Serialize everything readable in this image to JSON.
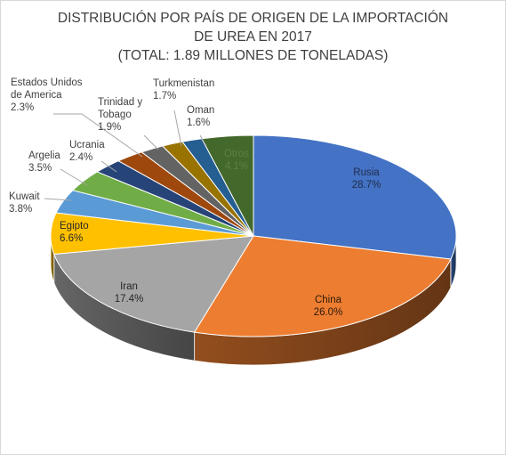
{
  "chart_data": {
    "type": "pie",
    "style": "3d-pie",
    "title_lines": [
      "DISTRIBUCIÓN POR PAÍS DE ORIGEN  DE LA IMPORTACIÓN",
      "DE UREA EN 2017",
      "(TOTAL: 1.89 MILLONES DE TONELADAS)"
    ],
    "legend": "none",
    "data_label_format": "category + percent",
    "slices": [
      {
        "label_lines": [
          "Rusia"
        ],
        "value_text": "28.7%",
        "value": 28.7,
        "color": "#4472c4"
      },
      {
        "label_lines": [
          "China"
        ],
        "value_text": "26.0%",
        "value": 26.0,
        "color": "#ed7d31"
      },
      {
        "label_lines": [
          "Iran"
        ],
        "value_text": "17.4%",
        "value": 17.4,
        "color": "#a5a5a5"
      },
      {
        "label_lines": [
          "Egipto"
        ],
        "value_text": "6.6%",
        "value": 6.6,
        "color": "#ffc000"
      },
      {
        "label_lines": [
          "Kuwait"
        ],
        "value_text": "3.8%",
        "value": 3.8,
        "color": "#5b9bd5"
      },
      {
        "label_lines": [
          "Argelia"
        ],
        "value_text": "3.5%",
        "value": 3.5,
        "color": "#70ad47"
      },
      {
        "label_lines": [
          "Ucrania"
        ],
        "value_text": "2.4%",
        "value": 2.4,
        "color": "#264478"
      },
      {
        "label_lines": [
          "Estados Unidos",
          "de America"
        ],
        "value_text": "2.3%",
        "value": 2.3,
        "color": "#9e480e"
      },
      {
        "label_lines": [
          "Trinidad y",
          "Tobago"
        ],
        "value_text": "1.9%",
        "value": 1.9,
        "color": "#636363"
      },
      {
        "label_lines": [
          "Turkmenistan"
        ],
        "value_text": "1.7%",
        "value": 1.7,
        "color": "#997300"
      },
      {
        "label_lines": [
          "Oman"
        ],
        "value_text": "1.6%",
        "value": 1.6,
        "color": "#255e91"
      },
      {
        "label_lines": [
          "Otros"
        ],
        "value_text": "4.1%",
        "value": 4.1,
        "color": "#43682b"
      }
    ]
  }
}
